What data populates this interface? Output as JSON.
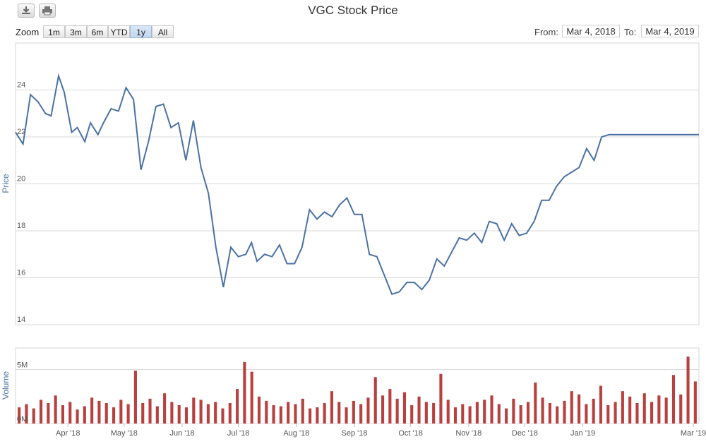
{
  "toolbar": {
    "download_icon": "download-icon",
    "print_icon": "print-icon"
  },
  "chart_title": "VGC Stock Price",
  "zoom": {
    "label": "Zoom",
    "buttons": [
      "1m",
      "3m",
      "6m",
      "YTD",
      "1y",
      "All"
    ],
    "active": "1y"
  },
  "range": {
    "from_label": "From:",
    "from_value": "Mar 4, 2018",
    "to_label": "To:",
    "to_value": "Mar 4, 2019"
  },
  "colors": {
    "price_line": "#4a71a5",
    "volume_bar": "#b8413f",
    "grid": "#d8d8d8"
  },
  "chart_data": [
    {
      "type": "line",
      "ylabel": "Price",
      "ylim": [
        14,
        26
      ],
      "yticks": [
        14,
        16,
        18,
        20,
        22,
        24
      ],
      "xlim": [
        "2018-03-04",
        "2019-03-04"
      ],
      "xticks": [
        "Apr '18",
        "May '18",
        "Jun '18",
        "Jul '18",
        "Aug '18",
        "Sep '18",
        "Oct '18",
        "Nov '18",
        "Dec '18",
        "Jan '19",
        "Mar '19"
      ],
      "grid": true,
      "series": [
        {
          "x": [
            "2018-03-04",
            "2018-03-08",
            "2018-03-12",
            "2018-03-16",
            "2018-03-20",
            "2018-03-23",
            "2018-03-27",
            "2018-03-30",
            "2018-04-03",
            "2018-04-06",
            "2018-04-10",
            "2018-04-13",
            "2018-04-17",
            "2018-04-20",
            "2018-04-24",
            "2018-04-28",
            "2018-05-02",
            "2018-05-06",
            "2018-05-10",
            "2018-05-14",
            "2018-05-18",
            "2018-05-22",
            "2018-05-26",
            "2018-05-30",
            "2018-06-03",
            "2018-06-07",
            "2018-06-11",
            "2018-06-15",
            "2018-06-19",
            "2018-06-23",
            "2018-06-27",
            "2018-07-01",
            "2018-07-05",
            "2018-07-08",
            "2018-07-11",
            "2018-07-15",
            "2018-07-19",
            "2018-07-23",
            "2018-07-27",
            "2018-07-31",
            "2018-08-04",
            "2018-08-08",
            "2018-08-12",
            "2018-08-16",
            "2018-08-20",
            "2018-08-24",
            "2018-08-28",
            "2018-09-01",
            "2018-09-05",
            "2018-09-09",
            "2018-09-13",
            "2018-09-17",
            "2018-09-21",
            "2018-09-25",
            "2018-09-29",
            "2018-10-03",
            "2018-10-07",
            "2018-10-11",
            "2018-10-15",
            "2018-10-19",
            "2018-10-23",
            "2018-10-27",
            "2018-10-31",
            "2018-11-04",
            "2018-11-08",
            "2018-11-12",
            "2018-11-16",
            "2018-11-20",
            "2018-11-24",
            "2018-11-28",
            "2018-12-02",
            "2018-12-06",
            "2018-12-10",
            "2018-12-14",
            "2018-12-18",
            "2018-12-22",
            "2018-12-26",
            "2018-12-30",
            "2019-01-03",
            "2019-01-07",
            "2019-01-11",
            "2019-01-15",
            "2019-01-19",
            "2019-01-23",
            "2019-01-27",
            "2019-01-31",
            "2019-02-04",
            "2019-02-08",
            "2019-02-12",
            "2019-02-16",
            "2019-02-20",
            "2019-02-24",
            "2019-02-28",
            "2019-03-04"
          ],
          "y": [
            22.2,
            21.7,
            23.8,
            23.5,
            23.0,
            22.9,
            24.6,
            23.9,
            22.2,
            22.4,
            21.8,
            22.6,
            22.1,
            22.6,
            23.2,
            23.1,
            24.1,
            23.6,
            20.6,
            21.8,
            23.3,
            23.4,
            22.4,
            22.6,
            21.0,
            22.7,
            20.7,
            19.6,
            17.3,
            15.6,
            17.3,
            16.9,
            17.0,
            17.5,
            16.7,
            17.0,
            16.9,
            17.4,
            16.6,
            16.6,
            17.3,
            18.9,
            18.5,
            18.8,
            18.6,
            19.1,
            19.4,
            18.7,
            18.7,
            17.0,
            16.9,
            16.1,
            15.3,
            15.4,
            15.8,
            15.8,
            15.5,
            15.9,
            16.8,
            16.5,
            17.1,
            17.7,
            17.6,
            17.9,
            17.5,
            18.4,
            18.3,
            17.6,
            18.3,
            17.8,
            17.9,
            18.4,
            19.3,
            19.3,
            19.9,
            20.3,
            20.5,
            20.7,
            21.5,
            21.0,
            22.0,
            22.1,
            22.1,
            22.1,
            22.1,
            22.1,
            22.1,
            22.1,
            22.1,
            22.1,
            22.1,
            22.1,
            22.1,
            22.1
          ]
        }
      ]
    },
    {
      "type": "bar",
      "ylabel": "Volume",
      "ylim": [
        0,
        7000000
      ],
      "yticks": [
        0,
        5000000
      ],
      "yticklabels": [
        "0M",
        "5M"
      ],
      "series": [
        {
          "name": "Volume",
          "values": [
            1500000,
            1800000,
            1400000,
            2200000,
            1900000,
            2600000,
            1700000,
            2000000,
            1300000,
            1600000,
            2400000,
            2100000,
            1900000,
            1500000,
            2200000,
            1800000,
            4900000,
            1900000,
            2300000,
            1600000,
            2800000,
            2000000,
            1700000,
            1500000,
            2400000,
            2200000,
            1800000,
            2000000,
            1400000,
            1900000,
            3200000,
            5700000,
            4800000,
            2500000,
            2100000,
            1700000,
            1600000,
            2000000,
            1800000,
            2300000,
            1400000,
            1500000,
            1900000,
            3000000,
            2000000,
            1500000,
            2100000,
            1800000,
            2400000,
            4300000,
            2600000,
            3200000,
            2300000,
            2900000,
            1700000,
            2500000,
            2000000,
            1900000,
            4600000,
            2200000,
            1500000,
            1800000,
            1600000,
            2000000,
            2200000,
            2600000,
            1800000,
            1400000,
            2300000,
            1700000,
            2000000,
            3800000,
            2400000,
            1900000,
            1600000,
            2100000,
            3000000,
            2700000,
            1800000,
            2300000,
            3500000,
            1700000,
            2000000,
            3000000,
            2500000,
            1900000,
            2800000,
            2000000,
            2600000,
            2400000,
            4500000,
            2700000,
            6200000,
            3900000
          ]
        }
      ]
    }
  ]
}
